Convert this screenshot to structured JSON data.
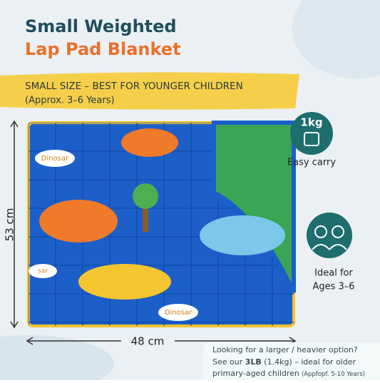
{
  "header": {
    "title_line1": "Small Weighted",
    "title_line2": "Lap Pad Blanket"
  },
  "banner": {
    "line1": "SMALL SIZE – BEST FOR YOUNGER CHILDREN",
    "line2": "(Approx. 3–6 Years)"
  },
  "dimensions": {
    "height": "53 cm",
    "width": "48 cm"
  },
  "features": [
    {
      "icon_text": "1kg",
      "caption": "Easy carry"
    },
    {
      "caption_lines": [
        "Ideal for",
        "Ages 3–6"
      ]
    }
  ],
  "blanket_labels": [
    "Dinosar",
    "sar",
    "Dinosar"
  ],
  "footer": {
    "line1": "Looking for a larger / heavier option?",
    "line2_start": "See our ",
    "line2_bold": "3LB",
    "line2_end": " (1.4kg) – ideal for older",
    "line3": "primary-aged children",
    "line3_small": "(Appfopf. 5-10 Years)"
  }
}
